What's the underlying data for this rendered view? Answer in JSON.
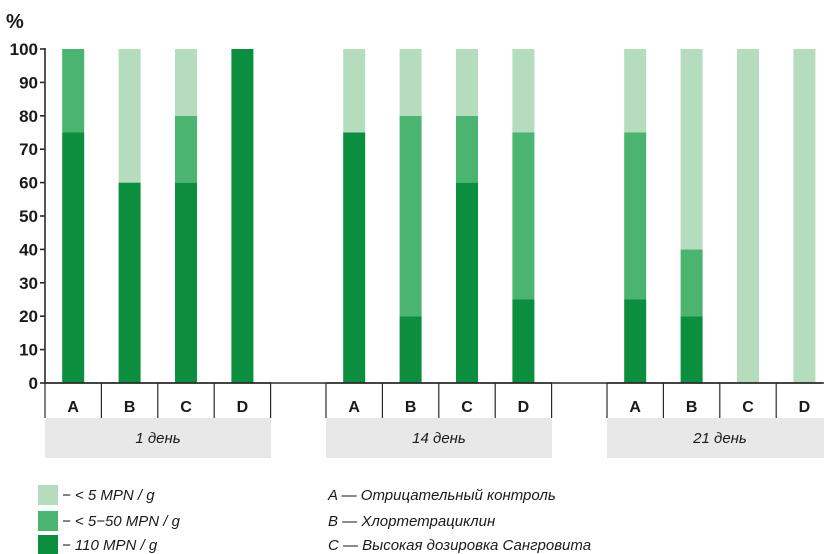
{
  "chart_data": {
    "type": "bar",
    "stacked": true,
    "unit_label": "%",
    "ylim": [
      0,
      100
    ],
    "yticks": [
      0,
      10,
      20,
      30,
      40,
      50,
      60,
      70,
      80,
      90,
      100
    ],
    "categories": [
      "A",
      "B",
      "C",
      "D",
      "A",
      "B",
      "C",
      "D",
      "A",
      "B",
      "C",
      "D"
    ],
    "groups": [
      {
        "label": "1 день",
        "categories": [
          "A",
          "B",
          "C",
          "D"
        ]
      },
      {
        "label": "14 день",
        "categories": [
          "A",
          "B",
          "C",
          "D"
        ]
      },
      {
        "label": "21 день",
        "categories": [
          "A",
          "B",
          "C",
          "D"
        ]
      }
    ],
    "series": [
      {
        "name": "110 MPN / g",
        "color": "#0b8e3d",
        "values": [
          75,
          60,
          60,
          100,
          75,
          20,
          60,
          25,
          25,
          20,
          0,
          0
        ]
      },
      {
        "name": "< 5−50 MPN / g",
        "color": "#4bb470",
        "values": [
          25,
          0,
          20,
          0,
          0,
          60,
          20,
          50,
          50,
          20,
          0,
          0
        ]
      },
      {
        "name": "< 5 MPN / g",
        "color": "#b6dcbe",
        "values": [
          0,
          40,
          20,
          0,
          25,
          20,
          20,
          25,
          25,
          60,
          100,
          100
        ]
      }
    ],
    "legend_series": [
      {
        "text": "−  < 5 MPN / g",
        "color": "#b6dcbe"
      },
      {
        "text": "−  < 5−50 MPN / g",
        "color": "#4bb470"
      },
      {
        "text": "−  110 MPN / g",
        "color": "#0b8e3d"
      }
    ],
    "legend_categories": [
      "A — Отрицательный контроль",
      "B — Хлортетрациклин",
      "C — Высокая дозировка Сангровита"
    ],
    "grid": false,
    "panel_color": "#e8e8e8"
  }
}
